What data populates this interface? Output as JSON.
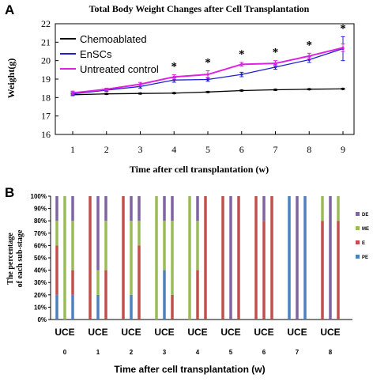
{
  "chart_data": [
    {
      "panel_label": "A",
      "type": "line",
      "title": "Total Body Weight Changes after Cell Transplantation",
      "xlabel": "Time after cell transplantation (w)",
      "ylabel": "Weight(g)",
      "x": [
        1,
        2,
        3,
        4,
        5,
        6,
        7,
        8,
        9
      ],
      "ylim": [
        16,
        22
      ],
      "yticks": [
        16,
        17,
        18,
        19,
        20,
        21,
        22
      ],
      "grid": false,
      "legend_position": "top-left",
      "significance_marker": "*",
      "significance_at": [
        4,
        5,
        6,
        7,
        8,
        9
      ],
      "series": [
        {
          "name": "Chemoablated",
          "color": "#000000",
          "values": [
            18.15,
            18.2,
            18.22,
            18.24,
            18.3,
            18.38,
            18.42,
            18.45,
            18.47
          ],
          "errors": [
            0.05,
            0.03,
            0.03,
            0.03,
            0.03,
            0.03,
            0.03,
            0.03,
            0.03
          ]
        },
        {
          "name": "EnSCs",
          "color": "#1f1fd0",
          "values": [
            18.2,
            18.4,
            18.6,
            18.95,
            18.98,
            19.25,
            19.65,
            20.05,
            20.65
          ],
          "errors": [
            0.1,
            0.06,
            0.1,
            0.12,
            0.1,
            0.12,
            0.12,
            0.15,
            0.65
          ]
        },
        {
          "name": "Untreated control",
          "color": "#e020e0",
          "values": [
            18.25,
            18.45,
            18.72,
            19.12,
            19.25,
            19.8,
            19.85,
            20.25,
            20.7
          ],
          "errors": [
            0.1,
            0.06,
            0.1,
            0.12,
            0.2,
            0.1,
            0.15,
            0.15,
            0.2
          ]
        }
      ]
    },
    {
      "panel_label": "B",
      "type": "bar",
      "stacked": true,
      "xlabel": "Time after cell transplantation (w)",
      "ylabel_lines": [
        "The percentage",
        "of each sub-stage"
      ],
      "ylim": [
        0,
        100
      ],
      "yticks": [
        "0%",
        "10%",
        "20%",
        "30%",
        "40%",
        "50%",
        "60%",
        "70%",
        "80%",
        "90%",
        "100%"
      ],
      "groups": [
        "0",
        "1",
        "2",
        "3",
        "4",
        "5",
        "6",
        "7",
        "8"
      ],
      "group_label": "UCE",
      "bar_order": [
        "U",
        "C",
        "E"
      ],
      "legend_position": "right",
      "stack_order": [
        "PE",
        "E",
        "ME",
        "DE"
      ],
      "series_colors": {
        "DE": "#8064a2",
        "ME": "#9bbb59",
        "E": "#c0504d",
        "PE": "#4f81bd"
      },
      "legend": [
        "DE",
        "ME",
        "E",
        "PE"
      ],
      "bars": [
        [
          {
            "PE": 20,
            "E": 40,
            "ME": 20,
            "DE": 20
          },
          {
            "PE": 0,
            "E": 0,
            "ME": 100,
            "DE": 0
          },
          {
            "PE": 20,
            "E": 20,
            "ME": 40,
            "DE": 20
          }
        ],
        [
          {
            "PE": 0,
            "E": 100,
            "ME": 0,
            "DE": 0
          },
          {
            "PE": 20,
            "E": 0,
            "ME": 20,
            "DE": 60
          },
          {
            "PE": 0,
            "E": 40,
            "ME": 40,
            "DE": 20
          }
        ],
        [
          {
            "PE": 0,
            "E": 100,
            "ME": 0,
            "DE": 0
          },
          {
            "PE": 20,
            "E": 0,
            "ME": 60,
            "DE": 20
          },
          {
            "PE": 0,
            "E": 60,
            "ME": 20,
            "DE": 20
          }
        ],
        [
          {
            "PE": 0,
            "E": 0,
            "ME": 100,
            "DE": 0
          },
          {
            "PE": 40,
            "E": 0,
            "ME": 40,
            "DE": 20
          },
          {
            "PE": 0,
            "E": 20,
            "ME": 60,
            "DE": 20
          }
        ],
        [
          {
            "PE": 0,
            "E": 0,
            "ME": 100,
            "DE": 0
          },
          {
            "PE": 0,
            "E": 40,
            "ME": 40,
            "DE": 20
          },
          {
            "PE": 0,
            "E": 100,
            "ME": 0,
            "DE": 0
          }
        ],
        [
          {
            "PE": 0,
            "E": 100,
            "ME": 0,
            "DE": 0
          },
          {
            "PE": 0,
            "E": 0,
            "ME": 0,
            "DE": 100
          },
          {
            "PE": 0,
            "E": 100,
            "ME": 0,
            "DE": 0
          }
        ],
        [
          {
            "PE": 0,
            "E": 100,
            "ME": 0,
            "DE": 0
          },
          {
            "PE": 0,
            "E": 80,
            "ME": 0,
            "DE": 20
          },
          {
            "PE": 0,
            "E": 100,
            "ME": 0,
            "DE": 0
          }
        ],
        [
          {
            "PE": 100,
            "E": 0,
            "ME": 0,
            "DE": 0
          },
          {
            "PE": 0,
            "E": 0,
            "ME": 0,
            "DE": 100
          },
          {
            "PE": 100,
            "E": 0,
            "ME": 0,
            "DE": 0
          }
        ],
        [
          {
            "PE": 0,
            "E": 80,
            "ME": 20,
            "DE": 0
          },
          {
            "PE": 0,
            "E": 0,
            "ME": 0,
            "DE": 100
          },
          {
            "PE": 0,
            "E": 80,
            "ME": 20,
            "DE": 0
          }
        ]
      ]
    }
  ]
}
